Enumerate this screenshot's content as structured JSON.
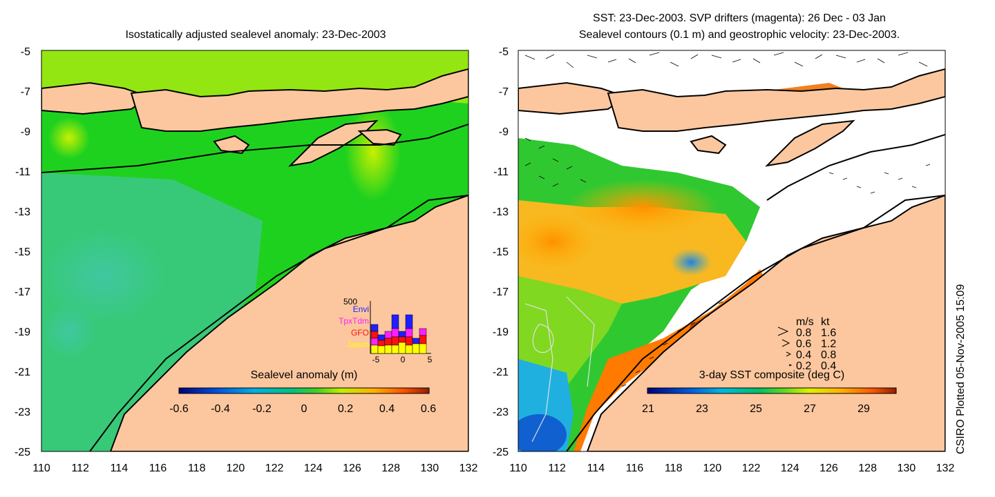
{
  "left_panel": {
    "title": "Isostatically adjusted sealevel anomaly: 23-Dec-2003",
    "colorbar_label": "Sealevel anomaly (m)",
    "colorbar_ticks": [
      "-0.6",
      "-0.4",
      "-0.2",
      "0",
      "0.2",
      "0.4",
      "0.6"
    ],
    "inset": {
      "ymax_label": "500",
      "legend": [
        {
          "name": "Envi",
          "color": "#2020ff"
        },
        {
          "name": "TpxTdm",
          "color": "#ff20ff"
        },
        {
          "name": "GFO",
          "color": "#ff1010"
        },
        {
          "name": "Jason",
          "color": "#ffff00"
        }
      ],
      "xticks": [
        "-5",
        "0",
        "5"
      ]
    }
  },
  "right_panel": {
    "title_line1": "SST: 23-Dec-2003. SVP drifters (magenta): 26 Dec - 03 Jan",
    "title_line2": "Sealevel contours (0.1 m) and geostrophic velocity: 23-Dec-2003.",
    "colorbar_label": "3-day SST composite (deg C)",
    "colorbar_ticks": [
      "21",
      "23",
      "25",
      "27",
      "29"
    ],
    "velocity_legend": {
      "header_ms": "m/s",
      "header_kt": "kt",
      "rows": [
        {
          "ms": "0.8",
          "kt": "1.6"
        },
        {
          "ms": "0.6",
          "kt": "1.2"
        },
        {
          "ms": "0.4",
          "kt": "0.8"
        },
        {
          "ms": "0.2",
          "kt": "0.4"
        }
      ]
    }
  },
  "axes": {
    "y_ticks": [
      "-5",
      "-7",
      "-9",
      "-11",
      "-13",
      "-15",
      "-17",
      "-19",
      "-21",
      "-23",
      "-25"
    ],
    "x_ticks": [
      "110",
      "112",
      "114",
      "116",
      "118",
      "120",
      "122",
      "124",
      "126",
      "128",
      "130",
      "132"
    ]
  },
  "credit": "CSIRO Plotted 05-Nov-2005 15:09",
  "colors": {
    "land": "#fcc79e",
    "ocean_green": "#1fd11f",
    "coast": "#000000"
  }
}
